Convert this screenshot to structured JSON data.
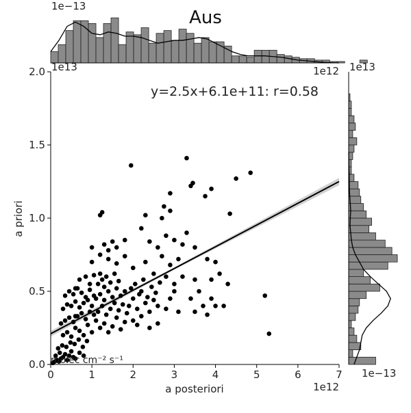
{
  "chart_data": {
    "type": "scatter",
    "title": "Aus",
    "xlabel": "a posteriori",
    "ylabel": "a priori",
    "units_label": "molec cm⁻² s⁻¹",
    "x_offset_label": "1e12",
    "y_offset_label": "1e13",
    "top_hist_offset_label": "1e−13",
    "right_hist_offset_label": "1e−13",
    "right_hist_axis_offset_label": "1e13",
    "annotation": "y=2.5x+6.1e+11: r=0.58",
    "xlim": [
      0,
      7
    ],
    "ylim": [
      0,
      2.0
    ],
    "xticks": [
      "0",
      "1",
      "2",
      "3",
      "4",
      "5",
      "6",
      "7"
    ],
    "xtick_values": [
      0,
      1,
      2,
      3,
      4,
      5,
      6,
      7
    ],
    "yticks": [
      "0.0",
      "0.5",
      "1.0",
      "1.5",
      "2.0"
    ],
    "ytick_values": [
      0,
      0.5,
      1.0,
      1.5,
      2.0
    ],
    "regression": {
      "slope": 2.5,
      "intercept": 0.61,
      "x_range": [
        0,
        7
      ]
    },
    "points": [
      [
        0.05,
        0.01
      ],
      [
        0.1,
        0.02
      ],
      [
        0.15,
        0.03
      ],
      [
        0.2,
        0.02
      ],
      [
        0.25,
        0.04
      ],
      [
        0.3,
        0.05
      ],
      [
        0.12,
        0.06
      ],
      [
        0.22,
        0.08
      ],
      [
        0.35,
        0.07
      ],
      [
        0.4,
        0.03
      ],
      [
        0.45,
        0.06
      ],
      [
        0.5,
        0.09
      ],
      [
        0.55,
        0.05
      ],
      [
        0.6,
        0.04
      ],
      [
        0.7,
        0.08
      ],
      [
        0.8,
        0.06
      ],
      [
        0.18,
        0.11
      ],
      [
        0.28,
        0.13
      ],
      [
        0.38,
        0.12
      ],
      [
        0.48,
        0.15
      ],
      [
        0.58,
        0.14
      ],
      [
        0.68,
        0.17
      ],
      [
        0.78,
        0.12
      ],
      [
        0.88,
        0.16
      ],
      [
        0.3,
        0.2
      ],
      [
        0.4,
        0.22
      ],
      [
        0.5,
        0.19
      ],
      [
        0.6,
        0.25
      ],
      [
        0.7,
        0.23
      ],
      [
        0.8,
        0.2
      ],
      [
        0.9,
        0.27
      ],
      [
        1.0,
        0.22
      ],
      [
        0.35,
        0.3
      ],
      [
        0.45,
        0.32
      ],
      [
        0.55,
        0.29
      ],
      [
        0.65,
        0.33
      ],
      [
        0.75,
        0.35
      ],
      [
        0.85,
        0.31
      ],
      [
        0.95,
        0.36
      ],
      [
        1.05,
        0.34
      ],
      [
        0.3,
        0.38
      ],
      [
        0.4,
        0.41
      ],
      [
        0.5,
        0.4
      ],
      [
        0.6,
        0.43
      ],
      [
        0.7,
        0.39
      ],
      [
        0.8,
        0.42
      ],
      [
        0.9,
        0.44
      ],
      [
        1.0,
        0.4
      ],
      [
        0.35,
        0.47
      ],
      [
        0.45,
        0.5
      ],
      [
        0.55,
        0.48
      ],
      [
        0.65,
        0.52
      ],
      [
        0.75,
        0.49
      ],
      [
        0.85,
        0.46
      ],
      [
        0.95,
        0.51
      ],
      [
        1.05,
        0.47
      ],
      [
        1.1,
        0.3
      ],
      [
        1.2,
        0.25
      ],
      [
        1.3,
        0.28
      ],
      [
        1.4,
        0.22
      ],
      [
        1.5,
        0.26
      ],
      [
        1.6,
        0.32
      ],
      [
        1.7,
        0.24
      ],
      [
        1.8,
        0.29
      ],
      [
        1.15,
        0.36
      ],
      [
        1.25,
        0.4
      ],
      [
        1.35,
        0.34
      ],
      [
        1.45,
        0.38
      ],
      [
        1.55,
        0.42
      ],
      [
        1.65,
        0.37
      ],
      [
        1.75,
        0.41
      ],
      [
        1.85,
        0.35
      ],
      [
        1.1,
        0.45
      ],
      [
        1.2,
        0.48
      ],
      [
        1.3,
        0.44
      ],
      [
        1.4,
        0.5
      ],
      [
        1.5,
        0.46
      ],
      [
        1.6,
        0.52
      ],
      [
        1.7,
        0.47
      ],
      [
        1.8,
        0.5
      ],
      [
        1.15,
        0.55
      ],
      [
        1.25,
        0.58
      ],
      [
        1.35,
        0.6
      ],
      [
        1.45,
        0.56
      ],
      [
        1.55,
        0.62
      ],
      [
        1.65,
        0.57
      ],
      [
        1.2,
        0.62
      ],
      [
        1.3,
        0.53
      ],
      [
        0.85,
        0.6
      ],
      [
        0.95,
        0.55
      ],
      [
        1.05,
        0.61
      ],
      [
        0.7,
        0.58
      ],
      [
        0.6,
        0.52
      ],
      [
        1.9,
        0.4
      ],
      [
        2.0,
        0.45
      ],
      [
        2.1,
        0.38
      ],
      [
        2.2,
        0.5
      ],
      [
        2.3,
        0.42
      ],
      [
        2.4,
        0.36
      ],
      [
        2.5,
        0.44
      ],
      [
        2.6,
        0.4
      ],
      [
        1.95,
        0.52
      ],
      [
        2.05,
        0.55
      ],
      [
        2.15,
        0.48
      ],
      [
        2.25,
        0.58
      ],
      [
        2.35,
        0.46
      ],
      [
        2.45,
        0.53
      ],
      [
        2.55,
        0.49
      ],
      [
        2.65,
        0.56
      ],
      [
        2.0,
        0.3
      ],
      [
        2.1,
        0.27
      ],
      [
        2.2,
        0.33
      ],
      [
        2.4,
        0.25
      ],
      [
        2.6,
        0.28
      ],
      [
        2.8,
        0.38
      ],
      [
        2.9,
        0.45
      ],
      [
        3.0,
        0.5
      ],
      [
        1.0,
        0.7
      ],
      [
        1.2,
        0.75
      ],
      [
        1.4,
        0.72
      ],
      [
        1.6,
        0.69
      ],
      [
        1.8,
        0.74
      ],
      [
        1.4,
        0.78
      ],
      [
        1.6,
        0.8
      ],
      [
        1.0,
        0.8
      ],
      [
        2.0,
        0.66
      ],
      [
        2.3,
        0.7
      ],
      [
        2.5,
        0.62
      ],
      [
        2.7,
        0.74
      ],
      [
        2.9,
        0.68
      ],
      [
        3.1,
        0.72
      ],
      [
        2.4,
        0.84
      ],
      [
        2.6,
        0.8
      ],
      [
        2.8,
        0.88
      ],
      [
        3.0,
        0.85
      ],
      [
        3.2,
        0.82
      ],
      [
        2.2,
        0.93
      ],
      [
        2.3,
        1.02
      ],
      [
        2.7,
        1.0
      ],
      [
        1.3,
        0.82
      ],
      [
        1.5,
        0.84
      ],
      [
        1.8,
        0.85
      ],
      [
        1.2,
        1.02
      ],
      [
        1.25,
        1.04
      ],
      [
        2.9,
        1.05
      ],
      [
        3.5,
        0.8
      ],
      [
        3.8,
        0.72
      ],
      [
        4.0,
        0.7
      ],
      [
        3.3,
        0.9
      ],
      [
        3.1,
        0.36
      ],
      [
        3.5,
        0.36
      ],
      [
        3.7,
        0.4
      ],
      [
        3.9,
        0.45
      ],
      [
        4.0,
        0.4
      ],
      [
        4.2,
        0.4
      ],
      [
        4.3,
        0.55
      ],
      [
        4.1,
        0.62
      ],
      [
        3.4,
        0.45
      ],
      [
        3.6,
        0.5
      ],
      [
        3.8,
        0.34
      ],
      [
        3.9,
        0.58
      ],
      [
        3.2,
        0.6
      ],
      [
        3.0,
        0.55
      ],
      [
        2.8,
        0.6
      ],
      [
        3.5,
        0.58
      ],
      [
        3.3,
        1.41
      ],
      [
        1.95,
        1.36
      ],
      [
        3.45,
        1.24
      ],
      [
        3.4,
        1.22
      ],
      [
        3.9,
        1.2
      ],
      [
        3.75,
        1.15
      ],
      [
        4.5,
        1.27
      ],
      [
        4.85,
        1.31
      ],
      [
        4.35,
        1.03
      ],
      [
        2.9,
        1.17
      ],
      [
        2.75,
        1.08
      ],
      [
        5.3,
        0.21
      ],
      [
        5.2,
        0.47
      ],
      [
        0.25,
        0.28
      ],
      [
        0.6,
        0.33
      ]
    ],
    "top_hist": {
      "bin_width": 0.183,
      "x_start": 0,
      "counts": [
        0.8,
        1.3,
        2.3,
        3.0,
        3.0,
        2.8,
        1.8,
        2.8,
        3.2,
        1.3,
        2.2,
        2.0,
        2.5,
        1.4,
        2.1,
        2.3,
        1.6,
        2.4,
        2.1,
        1.4,
        1.8,
        1.5,
        1.5,
        1.2,
        0.5,
        0.5,
        0.4,
        0.9,
        0.9,
        0.9,
        0.6,
        0.5,
        0.4,
        0.3,
        0.3,
        0.2,
        0.2,
        0.1,
        0.1,
        0.0,
        0.0,
        0.2,
        0.0,
        0.0,
        0.0,
        0.0
      ],
      "kde": [
        0.8,
        1.6,
        2.6,
        2.9,
        2.6,
        2.1,
        2.0,
        2.2,
        2.1,
        1.9,
        1.9,
        1.8,
        1.6,
        1.4,
        1.5,
        1.6,
        1.6,
        1.7,
        1.8,
        1.7,
        1.4,
        1.1,
        0.8,
        0.6,
        0.5,
        0.5,
        0.5,
        0.45,
        0.4,
        0.3,
        0.2,
        0.15,
        0.1,
        0.05,
        0.02,
        0.0
      ],
      "ymax": 3.4
    },
    "right_hist": {
      "bin_height": 0.05,
      "y_start": 0,
      "counts": [
        2.0,
        0.3,
        0.9,
        0.6,
        0.4,
        0.2,
        0.5,
        0.7,
        0.8,
        1.3,
        2.3,
        1.6,
        1.1,
        2.9,
        3.6,
        3.2,
        2.7,
        2.0,
        1.5,
        1.7,
        1.3,
        1.1,
        0.9,
        0.8,
        0.7,
        0.4,
        0.2,
        0.2,
        0.3,
        0.4,
        0.6,
        0.3,
        0.5,
        0.4,
        0.2,
        0.2,
        0.1,
        0.0,
        0.0,
        0.0
      ],
      "kde": [
        0.4,
        0.6,
        0.8,
        0.9,
        1.0,
        1.3,
        1.8,
        2.4,
        2.9,
        3.1,
        2.8,
        2.2,
        1.6,
        1.1,
        0.8,
        0.5,
        0.3,
        0.2,
        0.15,
        0.1,
        0.12,
        0.15,
        0.12,
        0.08,
        0.05,
        0.05,
        0.04,
        0.02,
        0.01,
        0.0
      ],
      "xmax": 3.8
    }
  }
}
